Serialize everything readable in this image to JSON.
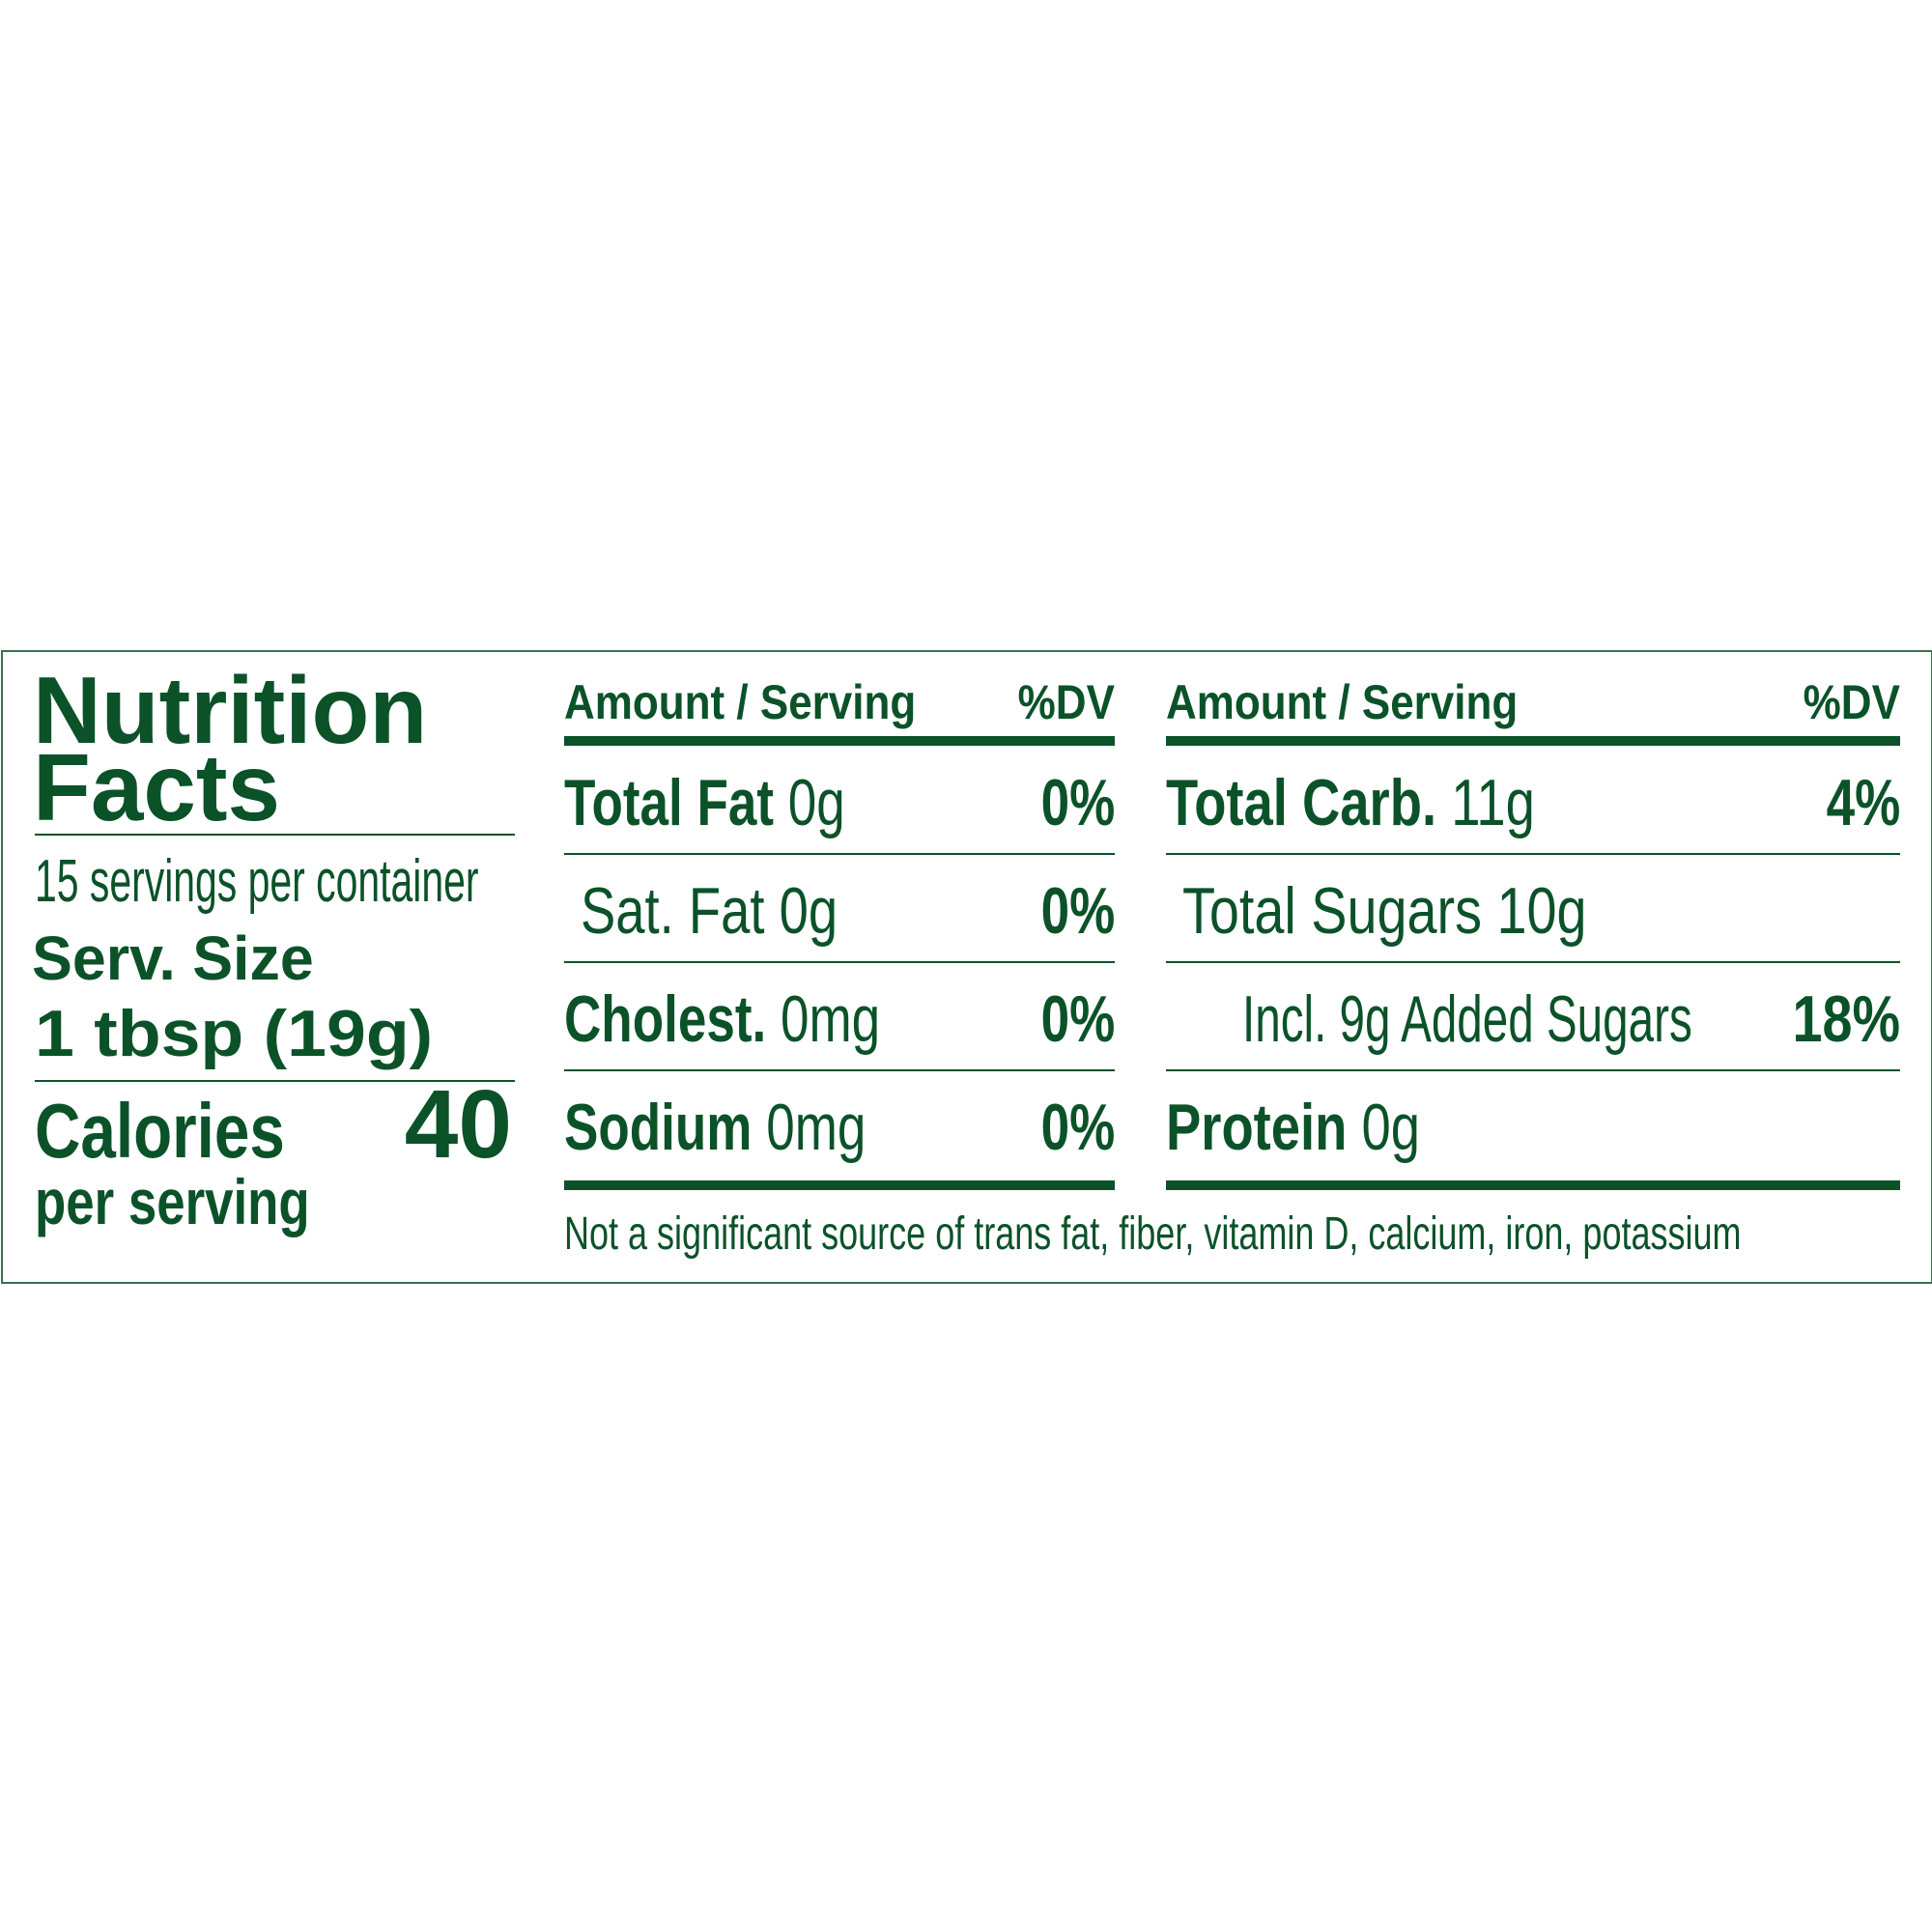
{
  "label": {
    "title_line1": "Nutrition",
    "title_line2": "Facts",
    "servings_per_container": "15 servings per container",
    "serving_size_label": "Serv. Size",
    "serving_size_value": "1 tbsp (19g)",
    "calories_label": "Calories",
    "calories_value": "40",
    "calories_sub": "per serving",
    "color": "#0b5229"
  },
  "left_table": {
    "header_amount": "Amount / Serving",
    "header_dv": "%DV",
    "rows": [
      {
        "name": "Total Fat",
        "amount": "0g",
        "dv": "0%"
      },
      {
        "name": "Sat. Fat",
        "amount": "0g",
        "dv": "0%"
      },
      {
        "name": "Cholest.",
        "amount": "0mg",
        "dv": "0%"
      },
      {
        "name": "Sodium",
        "amount": "0mg",
        "dv": "0%"
      }
    ]
  },
  "right_table": {
    "header_amount": "Amount / Serving",
    "header_dv": "%DV",
    "rows": [
      {
        "name": "Total Carb.",
        "amount": "11g",
        "dv": "4%"
      },
      {
        "name": "Total Sugars",
        "amount": "10g",
        "dv": ""
      },
      {
        "name": "Incl. 9g Added Sugars",
        "amount": "",
        "dv": "18%"
      },
      {
        "name": "Protein",
        "amount": "0g",
        "dv": ""
      }
    ]
  },
  "footnote": "Not a significant source of trans fat, fiber, vitamin D, calcium, iron, potassium"
}
